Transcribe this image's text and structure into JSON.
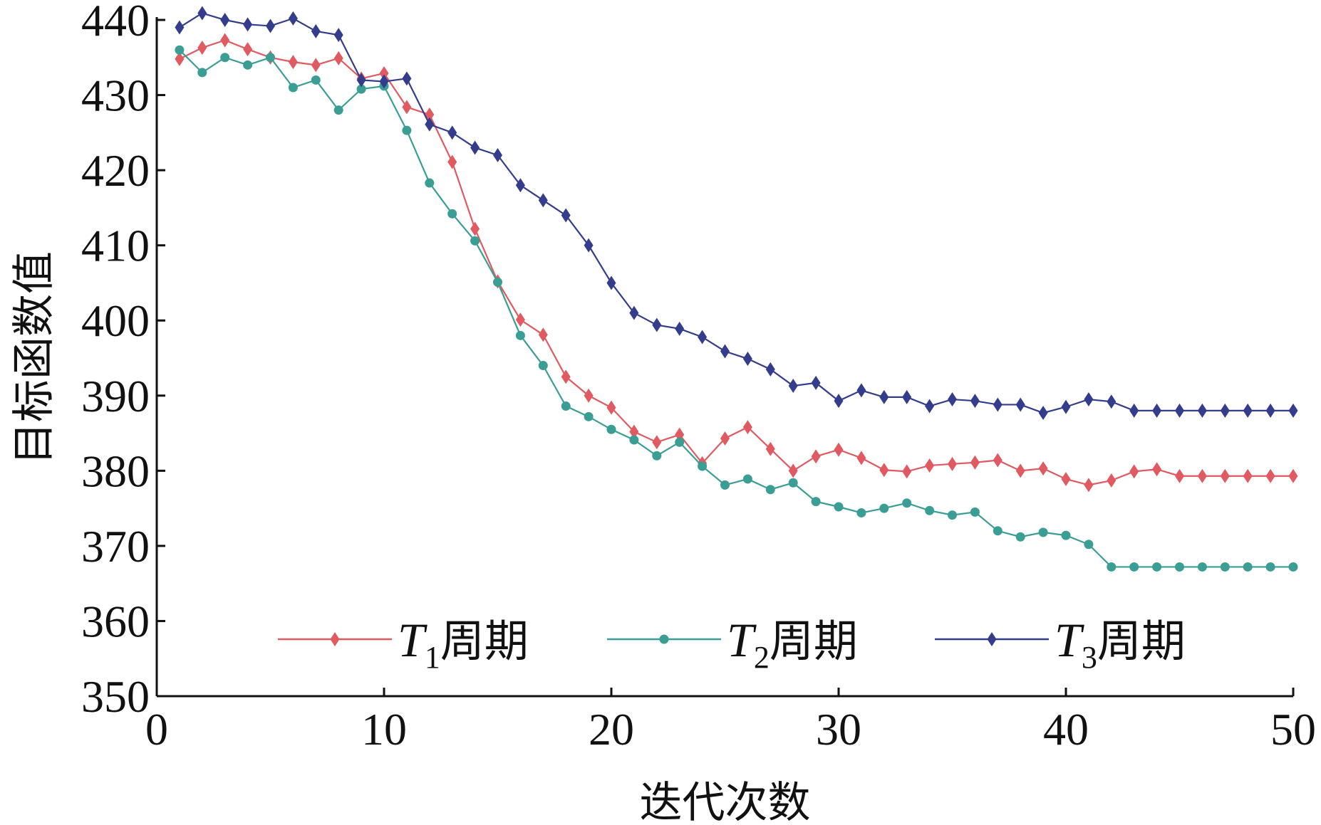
{
  "chart_data": {
    "type": "line",
    "title": "",
    "xlabel": "迭代次数",
    "ylabel": "目标函数值",
    "xlim": [
      0,
      50
    ],
    "ylim": [
      350,
      440
    ],
    "xticks": [
      0,
      10,
      20,
      30,
      40,
      50
    ],
    "yticks": [
      350,
      360,
      370,
      380,
      390,
      400,
      410,
      420,
      430,
      440
    ],
    "grid": false,
    "legend_position": "bottom",
    "x": [
      1,
      2,
      3,
      4,
      5,
      6,
      7,
      8,
      9,
      10,
      11,
      12,
      13,
      14,
      15,
      16,
      17,
      18,
      19,
      20,
      21,
      22,
      23,
      24,
      25,
      26,
      27,
      28,
      29,
      30,
      31,
      32,
      33,
      34,
      35,
      36,
      37,
      38,
      39,
      40,
      41,
      42,
      43,
      44,
      45,
      46,
      47,
      48,
      49,
      50
    ],
    "series": [
      {
        "name_main": "T",
        "name_sub": "1",
        "name_suffix": "周期",
        "color": "#e05a62",
        "marker": "diamond",
        "values": [
          434.8,
          436.3,
          437.3,
          436.1,
          435.0,
          434.4,
          434.0,
          434.9,
          432.2,
          432.9,
          428.4,
          427.4,
          421.1,
          412.2,
          405.2,
          400.1,
          398.1,
          392.5,
          390.0,
          388.4,
          385.2,
          383.8,
          384.8,
          381.0,
          384.3,
          385.8,
          382.9,
          380.0,
          381.9,
          382.8,
          381.7,
          380.1,
          379.9,
          380.7,
          380.9,
          381.1,
          381.4,
          380.0,
          380.3,
          378.9,
          378.1,
          378.7,
          379.9,
          380.2,
          379.3,
          379.3,
          379.3,
          379.3,
          379.3,
          379.3
        ]
      },
      {
        "name_main": "T",
        "name_sub": "2",
        "name_suffix": "周期",
        "color": "#3a9e94",
        "marker": "circle",
        "values": [
          436.0,
          433.0,
          435.0,
          434.0,
          435.0,
          431.0,
          432.0,
          428.0,
          430.8,
          431.2,
          425.3,
          418.3,
          414.2,
          410.6,
          405.1,
          398.0,
          394.0,
          388.6,
          387.2,
          385.5,
          384.1,
          382.0,
          383.8,
          380.6,
          378.1,
          378.9,
          377.5,
          378.4,
          375.9,
          375.2,
          374.4,
          375.0,
          375.7,
          374.7,
          374.1,
          374.5,
          372.0,
          371.2,
          371.8,
          371.4,
          370.2,
          367.2,
          367.2,
          367.2,
          367.2,
          367.2,
          367.2,
          367.2,
          367.2,
          367.2
        ]
      },
      {
        "name_main": "T",
        "name_sub": "3",
        "name_suffix": "周期",
        "color": "#333d8c",
        "marker": "diamond",
        "values": [
          439.0,
          440.9,
          440.0,
          439.4,
          439.2,
          440.2,
          438.5,
          438.0,
          432.0,
          431.8,
          432.2,
          426.1,
          425.0,
          423.0,
          422.0,
          418.0,
          416.0,
          414.0,
          410.0,
          405.0,
          401.0,
          399.4,
          398.9,
          397.8,
          395.9,
          394.9,
          393.5,
          391.3,
          391.7,
          389.3,
          390.7,
          389.8,
          389.8,
          388.6,
          389.5,
          389.3,
          388.8,
          388.8,
          387.7,
          388.5,
          389.5,
          389.2,
          388.0,
          388.0,
          388.0,
          388.0,
          388.0,
          388.0,
          388.0,
          388.0
        ]
      }
    ]
  }
}
